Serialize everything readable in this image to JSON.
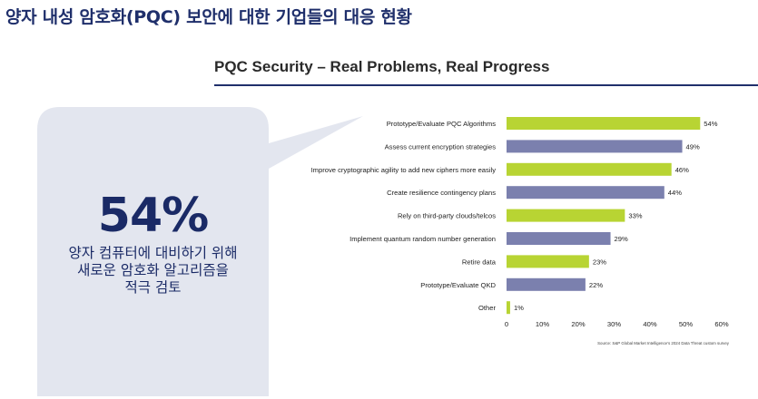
{
  "page": {
    "heading": "양자 내성 암호화(PQC) 보안에 대한 기업들의 대응 현황"
  },
  "callout": {
    "percent": "54%",
    "lines": [
      "양자 컴퓨터에 대비하기 위해",
      "새로운 암호화 알고리즘을",
      "적극 검토"
    ]
  },
  "colors": {
    "heading": "#1f2f6b",
    "green": "#b8d433",
    "purple": "#7b80ae",
    "callout_bg": "#e3e6ef"
  },
  "chart_data": {
    "type": "bar",
    "orientation": "horizontal",
    "title": "PQC Security – Real Problems, Real Progress",
    "categories": [
      "Prototype/Evaluate PQC Algorithms",
      "Assess current encryption strategies",
      "Improve cryptographic agility to add new ciphers more easily",
      "Create resilience contingency plans",
      "Rely on third-party clouds/telcos",
      "Implement quantum random number generation",
      "Retire data",
      "Prototype/Evaluate QKD",
      "Other"
    ],
    "values": [
      54,
      49,
      46,
      44,
      33,
      29,
      23,
      22,
      1
    ],
    "value_labels": [
      "54%",
      "49%",
      "46%",
      "44%",
      "33%",
      "29%",
      "23%",
      "22%",
      "1%"
    ],
    "bar_colors": [
      "green",
      "purple",
      "green",
      "purple",
      "green",
      "purple",
      "green",
      "purple",
      "green"
    ],
    "xlim": [
      0,
      60
    ],
    "xticks": [
      "0",
      "10%",
      "20%",
      "30%",
      "40%",
      "50%",
      "60%"
    ],
    "grid": false,
    "source": "Source: S&P Global Market Intelligence's 2024 Data Threat custom survey"
  }
}
